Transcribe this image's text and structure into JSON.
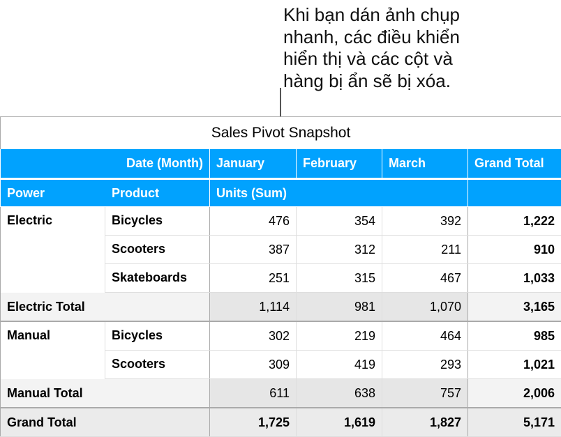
{
  "callout": {
    "lines": [
      "Khi bạn dán ảnh chụp",
      "nhanh, các điều khiển",
      "hiển thị và các cột và",
      "hàng bị ẩn sẽ bị xóa."
    ]
  },
  "table": {
    "title": "Sales Pivot Snapshot",
    "header1": {
      "date_label": "Date (Month)",
      "months": [
        "January",
        "February",
        "March"
      ],
      "grand_total": "Grand Total"
    },
    "header2": {
      "power": "Power",
      "product": "Product",
      "units": "Units (Sum)"
    },
    "groups": [
      {
        "power": "Electric",
        "rows": [
          {
            "product": "Bicycles",
            "values": [
              "476",
              "354",
              "392"
            ],
            "total": "1,222"
          },
          {
            "product": "Scooters",
            "values": [
              "387",
              "312",
              "211"
            ],
            "total": "910"
          },
          {
            "product": "Skateboards",
            "values": [
              "251",
              "315",
              "467"
            ],
            "total": "1,033"
          }
        ],
        "subtotal": {
          "label": "Electric Total",
          "values": [
            "1,114",
            "981",
            "1,070"
          ],
          "total": "3,165"
        }
      },
      {
        "power": "Manual",
        "rows": [
          {
            "product": "Bicycles",
            "values": [
              "302",
              "219",
              "464"
            ],
            "total": "985"
          },
          {
            "product": "Scooters",
            "values": [
              "309",
              "419",
              "293"
            ],
            "total": "1,021"
          }
        ],
        "subtotal": {
          "label": "Manual Total",
          "values": [
            "611",
            "638",
            "757"
          ],
          "total": "2,006"
        }
      }
    ],
    "grand_total": {
      "label": "Grand Total",
      "values": [
        "1,725",
        "1,619",
        "1,827"
      ],
      "total": "5,171"
    },
    "colors": {
      "header": "#01a2fe",
      "subtotal": "#f3f3f3",
      "grand_total": "#ebebeb"
    }
  }
}
